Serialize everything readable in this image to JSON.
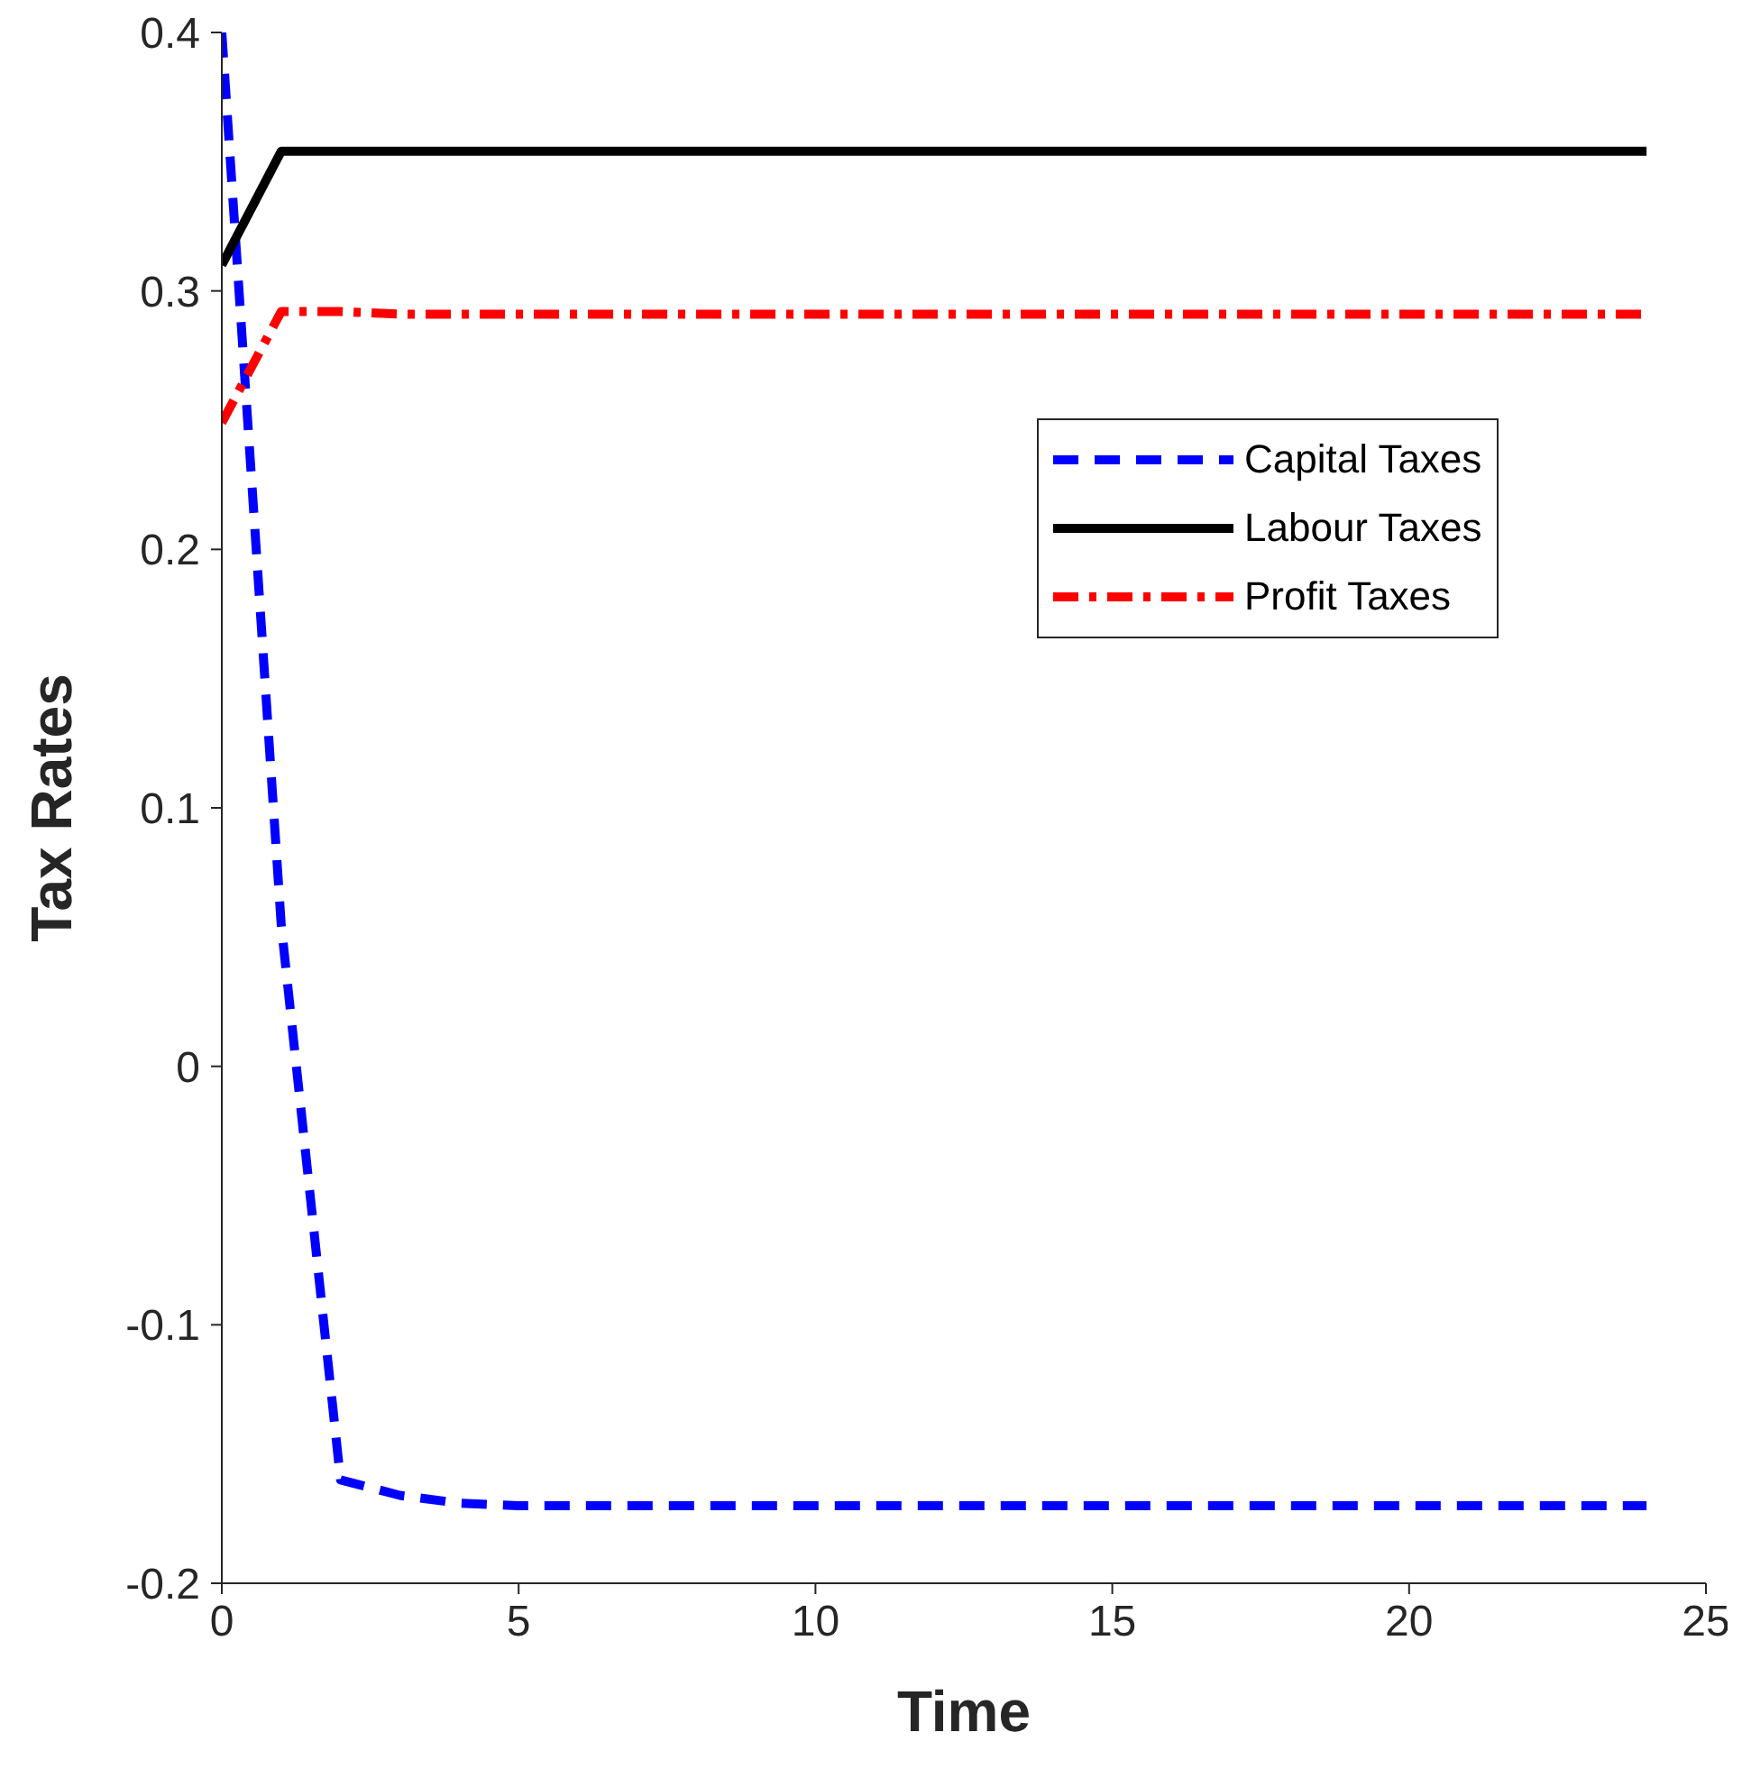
{
  "chart_data": {
    "type": "line",
    "xlabel": "Time",
    "ylabel": "Tax Rates",
    "x": [
      0,
      1,
      2,
      3,
      4,
      5,
      6,
      7,
      8,
      9,
      10,
      11,
      12,
      13,
      14,
      15,
      16,
      17,
      18,
      19,
      20,
      21,
      22,
      23,
      24
    ],
    "series": [
      {
        "name": "Capital Taxes",
        "color": "#0000ff",
        "line_style": "dashed",
        "values": [
          0.4,
          0.055,
          -0.16,
          -0.166,
          -0.169,
          -0.17,
          -0.17,
          -0.17,
          -0.17,
          -0.17,
          -0.17,
          -0.17,
          -0.17,
          -0.17,
          -0.17,
          -0.17,
          -0.17,
          -0.17,
          -0.17,
          -0.17,
          -0.17,
          -0.17,
          -0.17,
          -0.17,
          -0.17
        ]
      },
      {
        "name": "Labour Taxes",
        "color": "#000000",
        "line_style": "solid",
        "values": [
          0.31,
          0.354,
          0.354,
          0.354,
          0.354,
          0.354,
          0.354,
          0.354,
          0.354,
          0.354,
          0.354,
          0.354,
          0.354,
          0.354,
          0.354,
          0.354,
          0.354,
          0.354,
          0.354,
          0.354,
          0.354,
          0.354,
          0.354,
          0.354,
          0.354
        ]
      },
      {
        "name": "Profit Taxes",
        "color": "#ff0000",
        "line_style": "dashdot",
        "values": [
          0.249,
          0.292,
          0.292,
          0.291,
          0.291,
          0.291,
          0.291,
          0.291,
          0.291,
          0.291,
          0.291,
          0.291,
          0.291,
          0.291,
          0.291,
          0.291,
          0.291,
          0.291,
          0.291,
          0.291,
          0.291,
          0.291,
          0.291,
          0.291,
          0.291
        ]
      }
    ],
    "xlim": [
      0,
      25
    ],
    "xticks": [
      0,
      5,
      10,
      15,
      20,
      25
    ],
    "ylim": [
      -0.2,
      0.4
    ],
    "yticks": [
      -0.2,
      -0.1,
      0,
      0.1,
      0.2,
      0.3,
      0.4
    ],
    "grid": false,
    "legend": "top right",
    "marker": "none"
  }
}
